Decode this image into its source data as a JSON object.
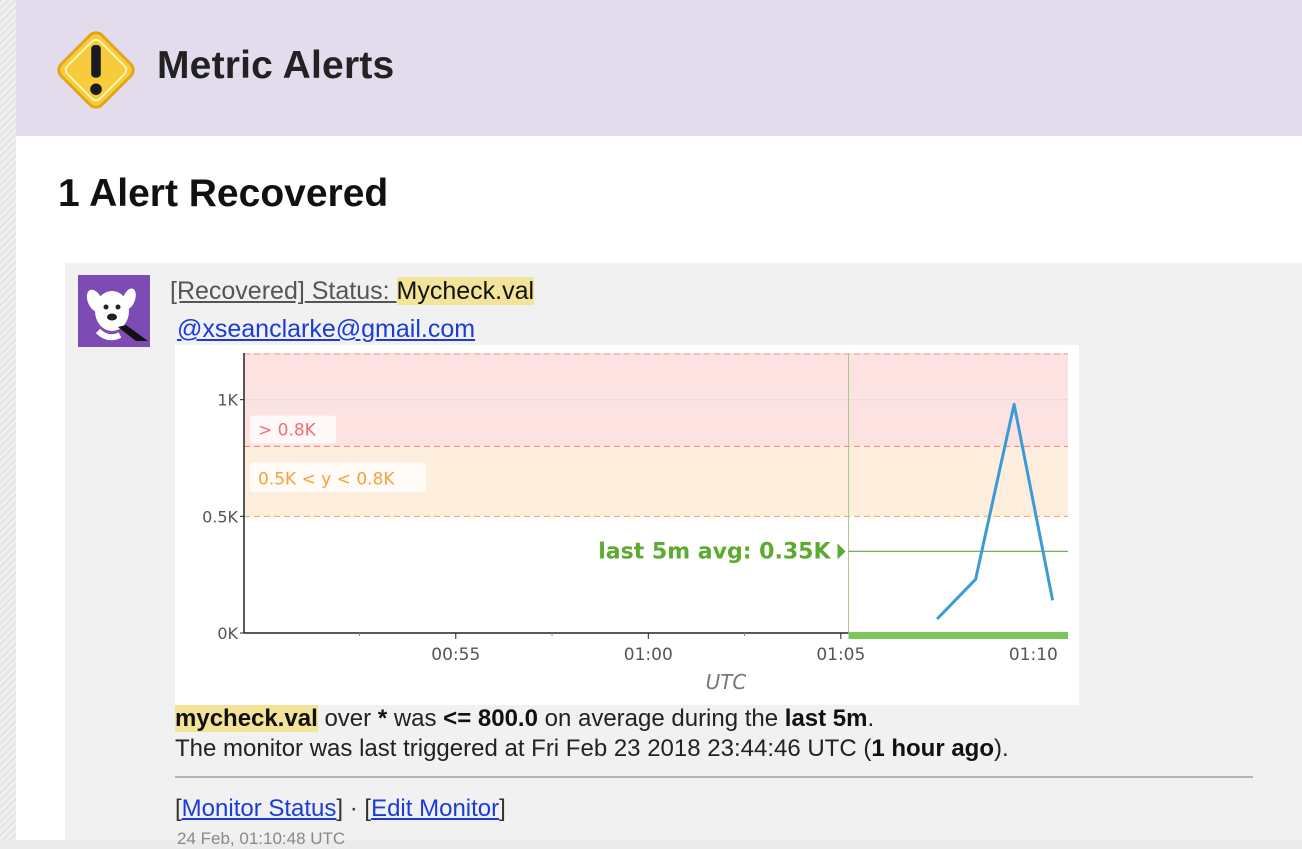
{
  "header": {
    "title": "Metric Alerts",
    "icon": "warning-icon"
  },
  "section": {
    "title": "1 Alert Recovered"
  },
  "alert": {
    "title_prefix": "[Recovered]",
    "title_status": " Status: ",
    "title_metric": "Mycheck.val",
    "email": "@xseanclarke@gmail.com",
    "description": {
      "metric": "mycheck.val",
      "over": " over ",
      "scope": "*",
      "was": " was ",
      "condition": "<= 800.0",
      "during": " on average during the ",
      "window": "last 5m",
      "period": ".",
      "triggered_prefix": "The monitor was last triggered at Fri Feb 23 2018 23:44:46 UTC (",
      "triggered_ago": "1 hour ago",
      "triggered_suffix": ")."
    },
    "links": {
      "open1": "[",
      "monitor_status": "Monitor Status",
      "sep": "] · [",
      "edit_monitor": "Edit Monitor",
      "close": "]"
    },
    "timestamp": "24 Feb, 01:10:48 UTC"
  },
  "chart_data": {
    "type": "line",
    "xlabel": "UTC",
    "ylabel": "",
    "x_ticks": [
      "00:55",
      "01:00",
      "01:05",
      "01:10"
    ],
    "y_ticks": [
      "0K",
      "0.5K",
      "1K"
    ],
    "ylim": [
      0,
      1.2
    ],
    "series": [
      {
        "values": [
          [
            67.5,
            0.06
          ],
          [
            68.5,
            0.23
          ],
          [
            69.5,
            0.98
          ],
          [
            70.5,
            0.14
          ]
        ]
      }
    ],
    "thresholds": {
      "alert_label": "> 0.8K",
      "warning_label": "0.5K < y < 0.8K",
      "alert_value": 0.8,
      "warning_value": 0.5
    },
    "annotation": "last 5m avg: 0.35K",
    "avg_value": 0.35,
    "colors": {
      "line": "#3b9bd4",
      "alert": "#f08080",
      "warning": "#f5a64a",
      "avg": "#5cab30"
    }
  }
}
